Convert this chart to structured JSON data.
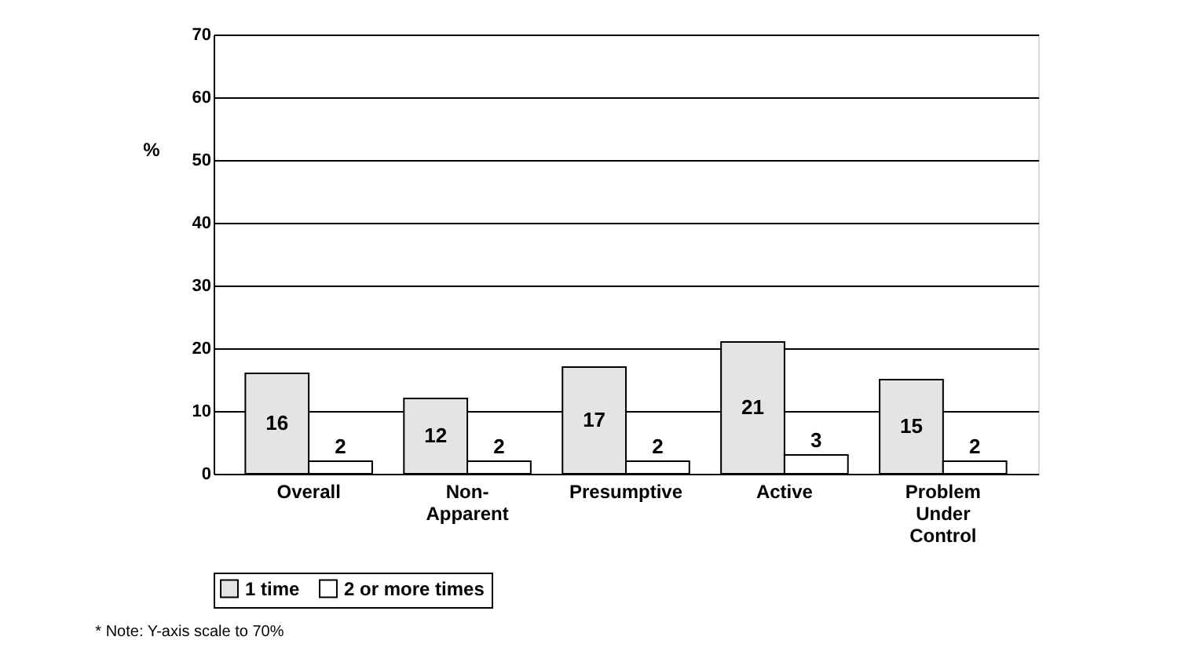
{
  "chart_data": {
    "type": "bar",
    "ylabel": "%",
    "categories": [
      "Overall",
      "Non-Apparent",
      "Presumptive",
      "Active",
      "Problem Under Control"
    ],
    "series": [
      {
        "name": "1 time",
        "color": "#e4e4e4",
        "values": [
          16,
          12,
          17,
          21,
          15
        ]
      },
      {
        "name": "2 or more times",
        "color": "#ffffff",
        "values": [
          2,
          2,
          2,
          3,
          2
        ]
      }
    ],
    "ylim": [
      0,
      70
    ],
    "yticks": [
      0,
      10,
      20,
      30,
      40,
      50,
      60,
      70
    ],
    "grid": "y",
    "legend": "bottom",
    "data_labels": true,
    "annotations": [
      "*  Note: Y-axis scale to 70%"
    ]
  }
}
